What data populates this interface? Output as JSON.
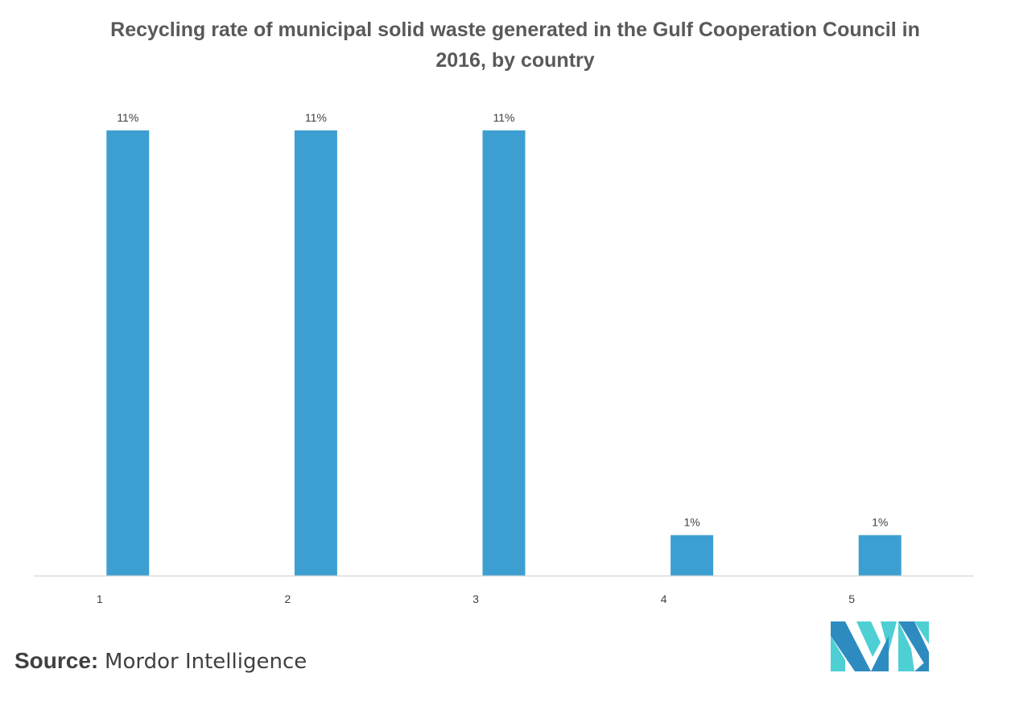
{
  "chart_data": {
    "type": "bar",
    "title": "Recycling rate of municipal solid waste generated in the Gulf Cooperation Council in 2016, by country",
    "categories": [
      "1",
      "2",
      "3",
      "4",
      "5"
    ],
    "values": [
      11,
      11,
      11,
      1,
      1
    ],
    "data_labels": [
      "11%",
      "11%",
      "11%",
      "1%",
      "1%"
    ],
    "xlabel": "",
    "ylabel": "",
    "ylim": [
      0,
      11
    ],
    "unit": "%",
    "grid": false,
    "legend": "none",
    "bar_color": "#3d9fd1",
    "axis_color": "#d9d9d9"
  },
  "source": {
    "prefix": "Source:",
    "name": "Mordor Intelligence"
  },
  "logo": {
    "icon": "mordor-intelligence-logo-icon",
    "colors": [
      "#2e8bc0",
      "#4dcfd3"
    ]
  }
}
